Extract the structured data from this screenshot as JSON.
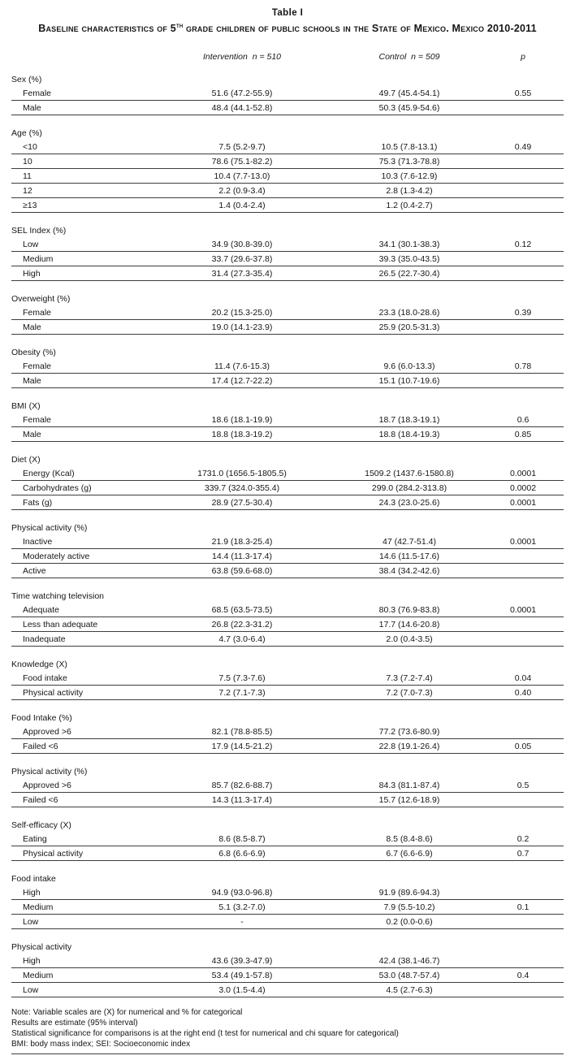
{
  "table": {
    "title": "Table I",
    "subtitle_pre": "Baseline characteristics of 5",
    "subtitle_sup": "th",
    "subtitle_post": " grade children of public schools in the State of Mexico. Mexico 2010-2011",
    "columns": {
      "intervention": "Intervention  n = 510",
      "control": "Control  n = 509",
      "p": "p"
    },
    "sections": [
      {
        "header": "Sex (%)",
        "rows": [
          {
            "label": "Female",
            "intervention": "51.6 (47.2-55.9)",
            "control": "49.7 (45.4-54.1)",
            "p": "0.55"
          },
          {
            "label": "Male",
            "intervention": "48.4 (44.1-52.8)",
            "control": "50.3 (45.9-54.6)",
            "p": ""
          }
        ]
      },
      {
        "header": "Age (%)",
        "rows": [
          {
            "label": "<10",
            "intervention": "7.5 (5.2-9.7)",
            "control": "10.5 (7.8-13.1)",
            "p": "0.49"
          },
          {
            "label": "10",
            "intervention": "78.6 (75.1-82.2)",
            "control": "75.3 (71.3-78.8)",
            "p": ""
          },
          {
            "label": "11",
            "intervention": "10.4 (7.7-13.0)",
            "control": "10.3 (7.6-12.9)",
            "p": ""
          },
          {
            "label": "12",
            "intervention": "2.2 (0.9-3.4)",
            "control": "2.8 (1.3-4.2)",
            "p": ""
          },
          {
            "label": "≥13",
            "intervention": "1.4 (0.4-2.4)",
            "control": "1.2 (0.4-2.7)",
            "p": ""
          }
        ]
      },
      {
        "header": "SEL Index (%)",
        "rows": [
          {
            "label": "Low",
            "intervention": "34.9 (30.8-39.0)",
            "control": "34.1 (30.1-38.3)",
            "p": "0.12"
          },
          {
            "label": "Medium",
            "intervention": "33.7 (29.6-37.8)",
            "control": "39.3 (35.0-43.5)",
            "p": ""
          },
          {
            "label": "High",
            "intervention": "31.4 (27.3-35.4)",
            "control": "26.5 (22.7-30.4)",
            "p": ""
          }
        ]
      },
      {
        "header": "Overweight (%)",
        "rows": [
          {
            "label": "Female",
            "intervention": "20.2 (15.3-25.0)",
            "control": "23.3 (18.0-28.6)",
            "p": "0.39"
          },
          {
            "label": "Male",
            "intervention": "19.0 (14.1-23.9)",
            "control": "25.9 (20.5-31.3)",
            "p": ""
          }
        ]
      },
      {
        "header": "Obesity (%)",
        "rows": [
          {
            "label": "Female",
            "intervention": "11.4 (7.6-15.3)",
            "control": "9.6 (6.0-13.3)",
            "p": "0.78"
          },
          {
            "label": "Male",
            "intervention": "17.4 (12.7-22.2)",
            "control": "15.1 (10.7-19.6)",
            "p": ""
          }
        ]
      },
      {
        "header": "BMI (X)",
        "rows": [
          {
            "label": "Female",
            "intervention": "18.6 (18.1-19.9)",
            "control": "18.7 (18.3-19.1)",
            "p": "0.6"
          },
          {
            "label": "Male",
            "intervention": "18.8 (18.3-19.2)",
            "control": "18.8 (18.4-19.3)",
            "p": "0.85"
          }
        ]
      },
      {
        "header": "Diet (X)",
        "rows": [
          {
            "label": "Energy (Kcal)",
            "intervention": "1731.0 (1656.5-1805.5)",
            "control": "1509.2 (1437.6-1580.8)",
            "p": "0.0001"
          },
          {
            "label": "Carbohydrates (g)",
            "intervention": "339.7 (324.0-355.4)",
            "control": "299.0 (284.2-313.8)",
            "p": "0.0002"
          },
          {
            "label": "Fats (g)",
            "intervention": "28.9 (27.5-30.4)",
            "control": "24.3 (23.0-25.6)",
            "p": "0.0001"
          }
        ]
      },
      {
        "header": "Physical activity (%)",
        "rows": [
          {
            "label": "Inactive",
            "intervention": "21.9 (18.3-25.4)",
            "control": "47 (42.7-51.4)",
            "p": "0.0001"
          },
          {
            "label": "Moderately active",
            "intervention": "14.4 (11.3-17.4)",
            "control": "14.6 (11.5-17.6)",
            "p": ""
          },
          {
            "label": "Active",
            "intervention": "63.8 (59.6-68.0)",
            "control": "38.4 (34.2-42.6)",
            "p": ""
          }
        ]
      },
      {
        "header": "Time watching television",
        "rows": [
          {
            "label": "Adequate",
            "intervention": "68.5 (63.5-73.5)",
            "control": "80.3 (76.9-83.8)",
            "p": "0.0001"
          },
          {
            "label": "Less than adequate",
            "intervention": "26.8 (22.3-31.2)",
            "control": "17.7 (14.6-20.8)",
            "p": ""
          },
          {
            "label": "Inadequate",
            "intervention": "4.7 (3.0-6.4)",
            "control": "2.0 (0.4-3.5)",
            "p": ""
          }
        ]
      },
      {
        "header": "Knowledge (X)",
        "rows": [
          {
            "label": "Food intake",
            "intervention": "7.5 (7.3-7.6)",
            "control": "7.3 (7.2-7.4)",
            "p": "0.04"
          },
          {
            "label": "Physical activity",
            "intervention": "7.2 (7.1-7.3)",
            "control": "7.2 (7.0-7.3)",
            "p": "0.40"
          }
        ]
      },
      {
        "header": "Food Intake (%)",
        "rows": [
          {
            "label": "Approved >6",
            "intervention": "82.1 (78.8-85.5)",
            "control": "77.2 (73.6-80.9)",
            "p": ""
          },
          {
            "label": "Failed <6",
            "intervention": "17.9 (14.5-21.2)",
            "control": "22.8 (19.1-26.4)",
            "p": "0.05"
          }
        ]
      },
      {
        "header": "Physical activity (%)",
        "rows": [
          {
            "label": "Approved >6",
            "intervention": "85.7 (82.6-88.7)",
            "control": "84.3 (81.1-87.4)",
            "p": "0.5"
          },
          {
            "label": "Failed <6",
            "intervention": "14.3 (11.3-17.4)",
            "control": "15.7 (12.6-18.9)",
            "p": ""
          }
        ]
      },
      {
        "header": "Self-efficacy (X)",
        "rows": [
          {
            "label": "Eating",
            "intervention": "8.6 (8.5-8.7)",
            "control": "8.5 (8.4-8.6)",
            "p": "0.2"
          },
          {
            "label": "Physical activity",
            "intervention": "6.8 (6.6-6.9)",
            "control": "6.7 (6.6-6.9)",
            "p": "0.7"
          }
        ]
      },
      {
        "header": "Food intake",
        "rows": [
          {
            "label": "High",
            "intervention": "94.9 (93.0-96.8)",
            "control": "91.9 (89.6-94.3)",
            "p": ""
          },
          {
            "label": "Medium",
            "intervention": "5.1 (3.2-7.0)",
            "control": "7.9 (5.5-10.2)",
            "p": "0.1"
          },
          {
            "label": "Low",
            "intervention": "-",
            "control": "0.2 (0.0-0.6)",
            "p": ""
          }
        ]
      },
      {
        "header": "Physical activity",
        "rows": [
          {
            "label": "High",
            "intervention": "43.6 (39.3-47.9)",
            "control": "42.4 (38.1-46.7)",
            "p": ""
          },
          {
            "label": "Medium",
            "intervention": "53.4 (49.1-57.8)",
            "control": "53.0 (48.7-57.4)",
            "p": "0.4"
          },
          {
            "label": "Low",
            "intervention": "3.0 (1.5-4.4)",
            "control": "4.5 (2.7-6.3)",
            "p": ""
          }
        ]
      }
    ],
    "notes": [
      "Note: Variable scales are (X) for numerical and % for categorical",
      "Results are estimate (95% interval)",
      "Statistical significance for comparisons is at the right end (t test for numerical and chi square for categorical)",
      "BMI: body mass index; SEI: Socioeconomic index"
    ]
  }
}
